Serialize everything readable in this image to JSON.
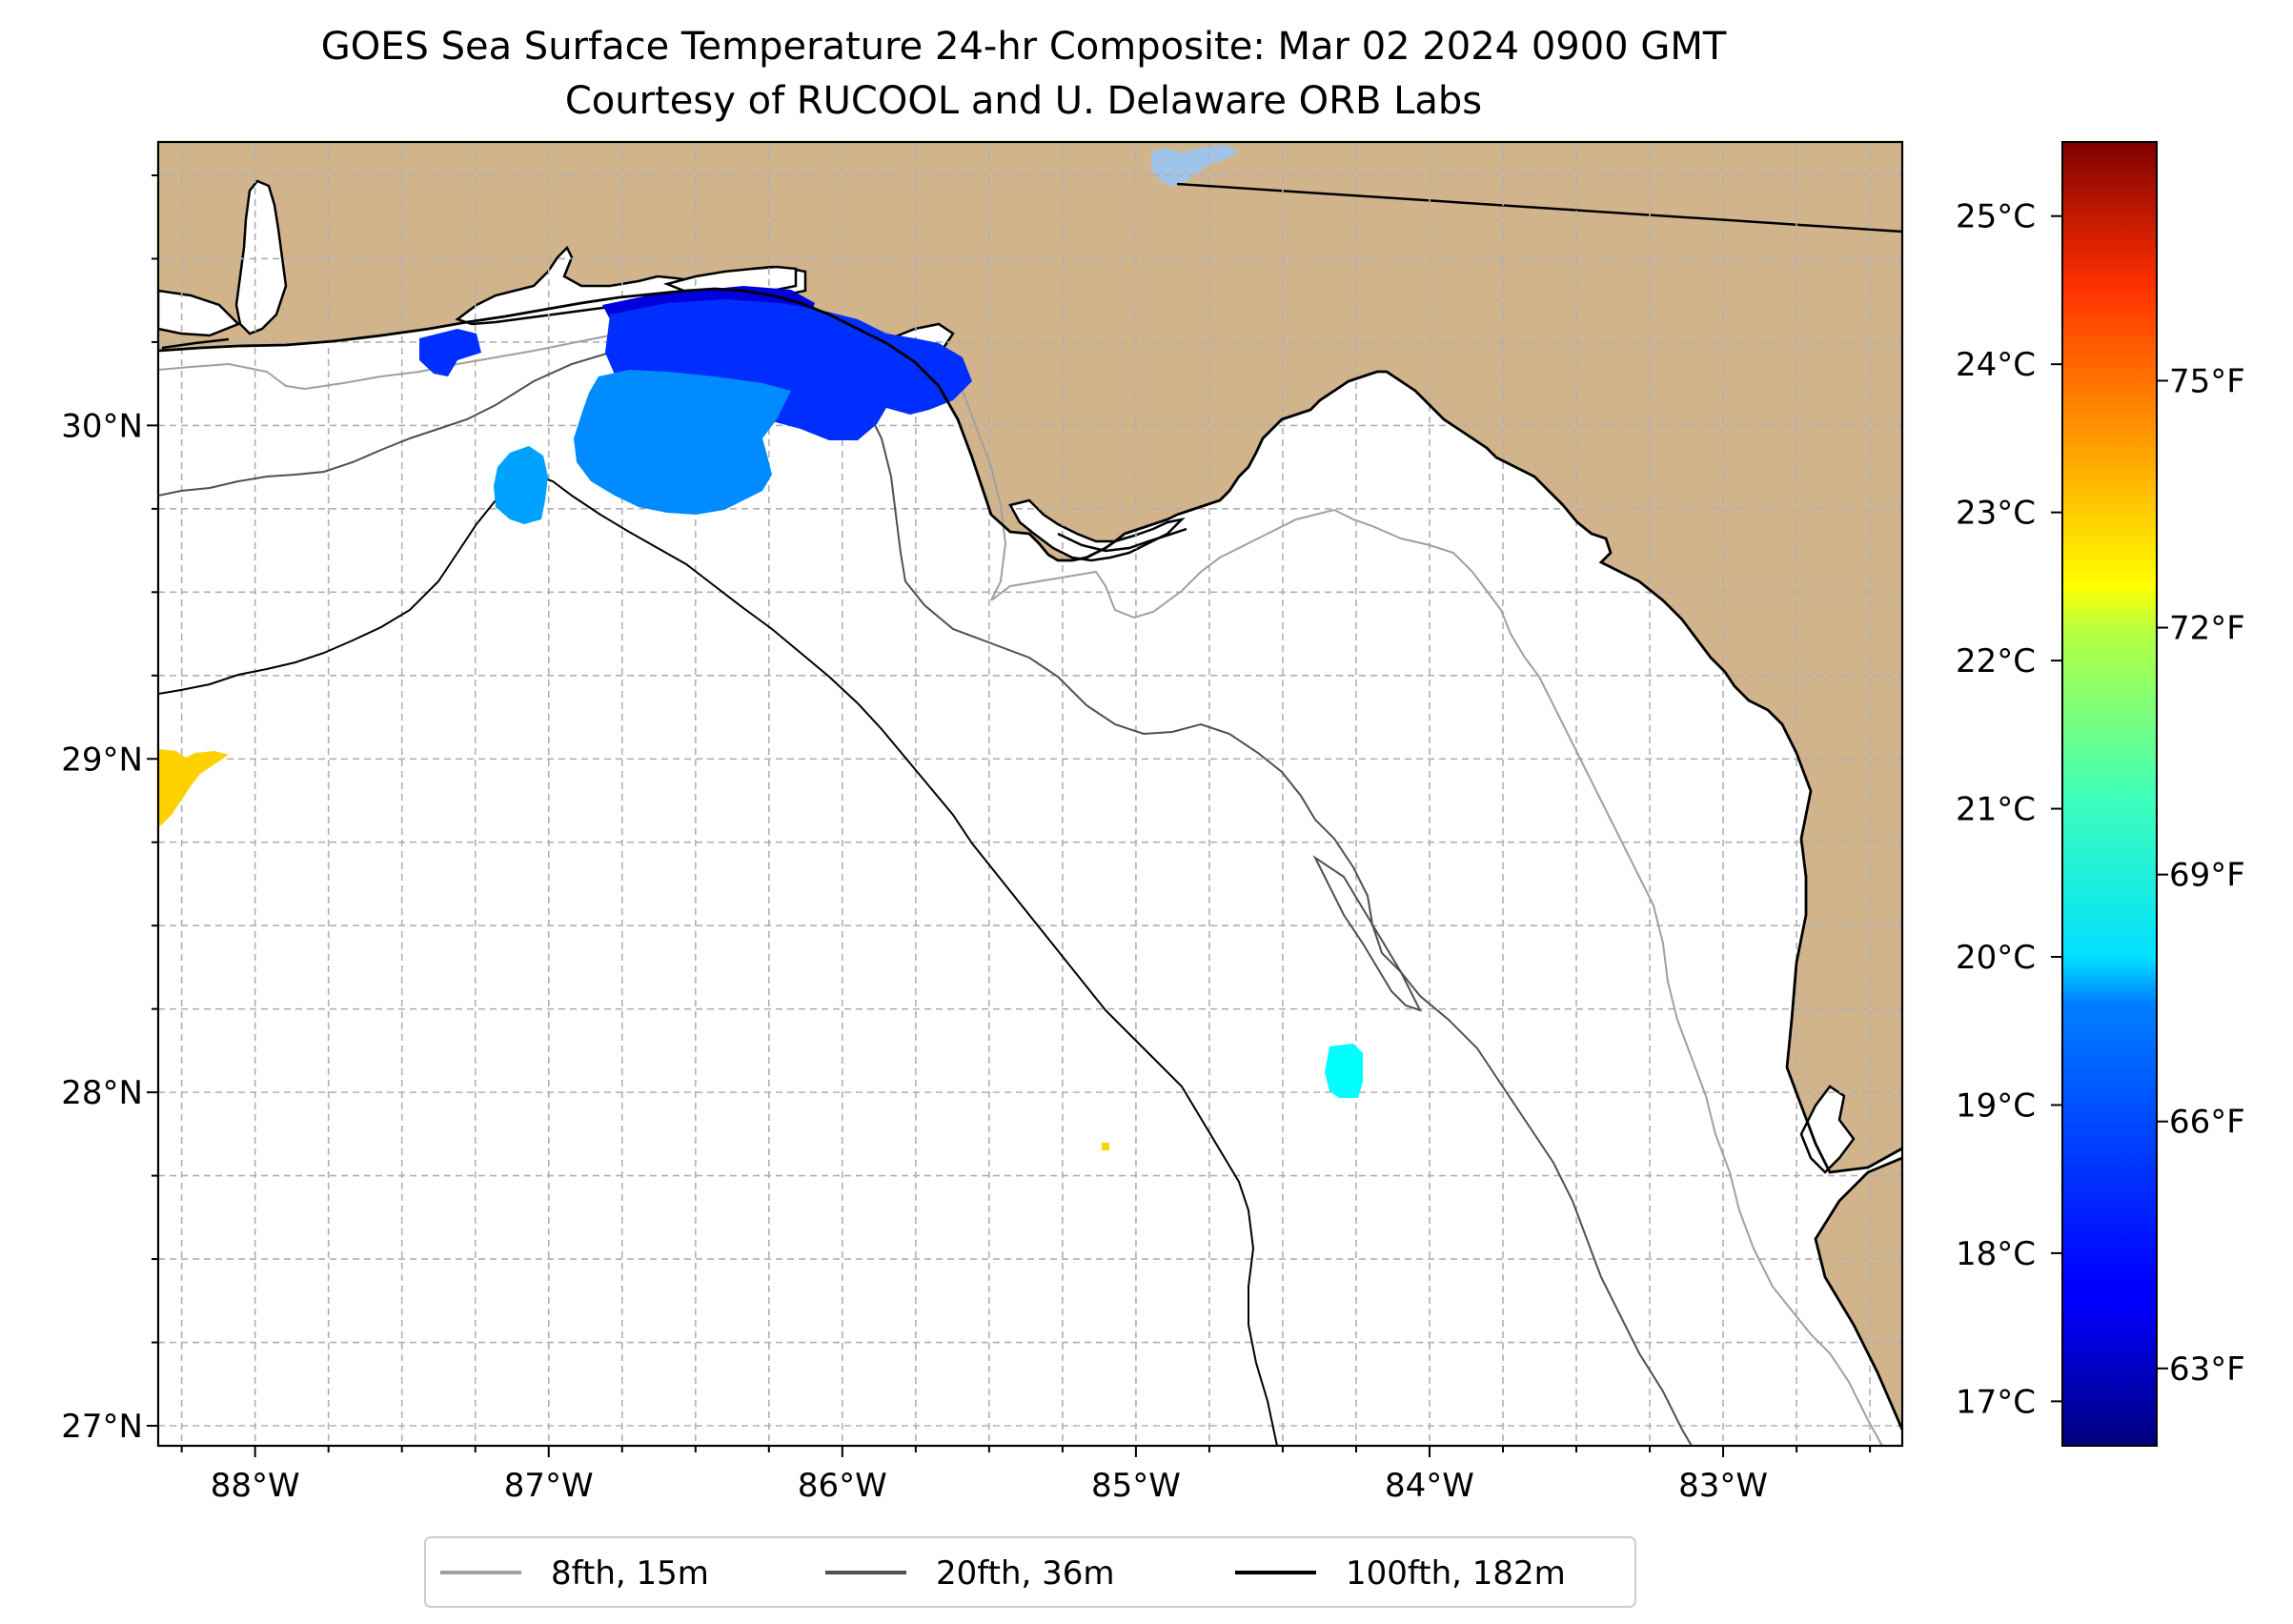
{
  "title": {
    "line1": "GOES Sea Surface Temperature 24-hr Composite: Mar 02 2024 0900 GMT",
    "line2": "Courtesy of RUCOOL and U. Delaware ORB Labs"
  },
  "map": {
    "extent": {
      "lon_min": -88.33,
      "lon_max": -82.39,
      "lat_min": 26.94,
      "lat_max": 30.85
    },
    "land_color": "#d2b48c",
    "ocean_color": "#ffffff",
    "lon_ticks": [
      {
        "value": -88,
        "label": "88°W"
      },
      {
        "value": -87,
        "label": "87°W"
      },
      {
        "value": -86,
        "label": "86°W"
      },
      {
        "value": -85,
        "label": "85°W"
      },
      {
        "value": -84,
        "label": "84°W"
      },
      {
        "value": -83,
        "label": "83°W"
      }
    ],
    "lat_ticks": [
      {
        "value": 30,
        "label": "30°N"
      },
      {
        "value": 29,
        "label": "29°N"
      },
      {
        "value": 28,
        "label": "28°N"
      },
      {
        "value": 27,
        "label": "27°N"
      }
    ],
    "grid": true,
    "grid_spacing_deg": 0.25
  },
  "legend": {
    "placement": "bottom-center",
    "items": [
      {
        "label": "8fth, 15m",
        "color": "#a0a0a0"
      },
      {
        "label": "20fth, 36m",
        "color": "#505050"
      },
      {
        "label": "100fth, 182m",
        "color": "#000000"
      }
    ]
  },
  "colorbar": {
    "colormap": "jet",
    "min_c": 16.7,
    "max_c": 25.5,
    "celsius_ticks": [
      {
        "value": 25,
        "label": "25°C"
      },
      {
        "value": 24,
        "label": "24°C"
      },
      {
        "value": 23,
        "label": "23°C"
      },
      {
        "value": 22,
        "label": "22°C"
      },
      {
        "value": 21,
        "label": "21°C"
      },
      {
        "value": 20,
        "label": "20°C"
      },
      {
        "value": 19,
        "label": "19°C"
      },
      {
        "value": 18,
        "label": "18°C"
      },
      {
        "value": 17,
        "label": "17°C"
      }
    ],
    "fahrenheit_ticks": [
      {
        "value": 75,
        "label": "75°F"
      },
      {
        "value": 72,
        "label": "72°F"
      },
      {
        "value": 69,
        "label": "69°F"
      },
      {
        "value": 66,
        "label": "66°F"
      },
      {
        "value": 63,
        "label": "63°F"
      }
    ]
  },
  "sst_patches": [
    {
      "name": "coastal-cold-patch",
      "temp_c": 17.5
    },
    {
      "name": "panhandle-blue-patch",
      "temp_c": 18.2
    },
    {
      "name": "offshore-light-blue-patch",
      "temp_c": 19.0
    },
    {
      "name": "western-cyan-patch",
      "temp_c": 19.2
    },
    {
      "name": "southern-aqua-patch",
      "temp_c": 20.0
    },
    {
      "name": "western-warm-patch",
      "temp_c": 22.6
    },
    {
      "name": "small-warm-dot",
      "temp_c": 22.6
    }
  ]
}
